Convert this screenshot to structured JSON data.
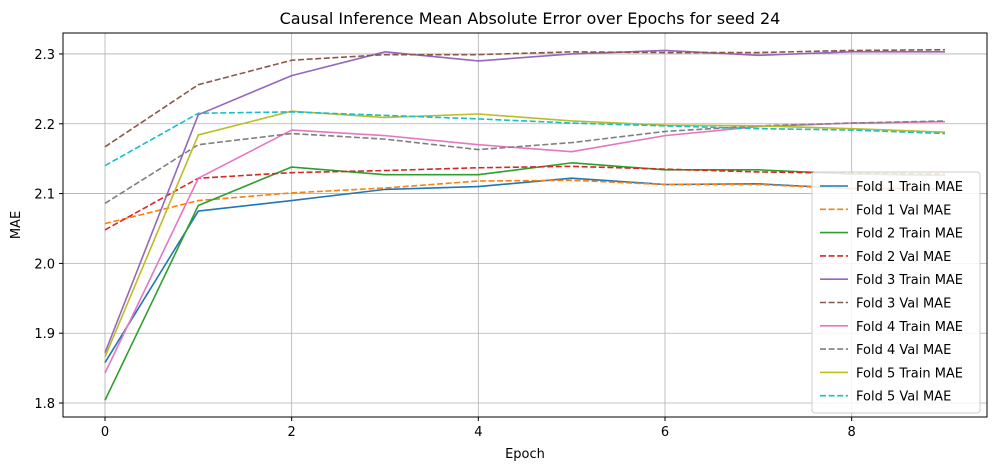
{
  "chart_data": {
    "type": "line",
    "title": "Causal Inference Mean Absolute Error over Epochs for seed 24",
    "xlabel": "Epoch",
    "ylabel": "MAE",
    "xlim": [
      -0.45,
      9.45
    ],
    "ylim": [
      1.78,
      2.33
    ],
    "xticks": [
      0,
      2,
      4,
      6,
      8
    ],
    "yticks": [
      1.8,
      1.9,
      2.0,
      2.1,
      2.2,
      2.3
    ],
    "grid": true,
    "legend_position": "lower right",
    "x": [
      0,
      1,
      2,
      3,
      4,
      5,
      6,
      7,
      8,
      9
    ],
    "series": [
      {
        "name": "Fold 1 Train MAE",
        "color": "#1f77b4",
        "style": "solid",
        "values": [
          1.858,
          2.075,
          2.09,
          2.106,
          2.11,
          2.122,
          2.113,
          2.114,
          2.107,
          2.107
        ]
      },
      {
        "name": "Fold 1 Val MAE",
        "color": "#ff7f0e",
        "style": "dashed",
        "values": [
          2.057,
          2.09,
          2.101,
          2.108,
          2.118,
          2.119,
          2.113,
          2.113,
          2.107,
          2.107
        ]
      },
      {
        "name": "Fold 2 Train MAE",
        "color": "#2ca02c",
        "style": "solid",
        "values": [
          1.804,
          2.083,
          2.138,
          2.127,
          2.127,
          2.144,
          2.134,
          2.134,
          2.128,
          2.126
        ]
      },
      {
        "name": "Fold 2 Val MAE",
        "color": "#d62728",
        "style": "dashed",
        "values": [
          2.048,
          2.122,
          2.13,
          2.133,
          2.137,
          2.139,
          2.135,
          2.131,
          2.129,
          2.128
        ]
      },
      {
        "name": "Fold 3 Train MAE",
        "color": "#9467bd",
        "style": "solid",
        "values": [
          1.872,
          2.213,
          2.269,
          2.303,
          2.29,
          2.3,
          2.305,
          2.298,
          2.303,
          2.303
        ]
      },
      {
        "name": "Fold 3 Val MAE",
        "color": "#8c564b",
        "style": "dashed",
        "values": [
          2.167,
          2.256,
          2.291,
          2.299,
          2.299,
          2.303,
          2.302,
          2.302,
          2.305,
          2.306
        ]
      },
      {
        "name": "Fold 4 Train MAE",
        "color": "#e377c2",
        "style": "solid",
        "values": [
          1.843,
          2.122,
          2.191,
          2.183,
          2.17,
          2.16,
          2.183,
          2.196,
          2.201,
          2.203
        ]
      },
      {
        "name": "Fold 4 Val MAE",
        "color": "#7f7f7f",
        "style": "dashed",
        "values": [
          2.086,
          2.17,
          2.186,
          2.178,
          2.163,
          2.173,
          2.189,
          2.197,
          2.201,
          2.204
        ]
      },
      {
        "name": "Fold 5 Train MAE",
        "color": "#bcbd22",
        "style": "solid",
        "values": [
          1.866,
          2.184,
          2.218,
          2.209,
          2.214,
          2.204,
          2.198,
          2.197,
          2.193,
          2.188
        ]
      },
      {
        "name": "Fold 5 Val MAE",
        "color": "#17becf",
        "style": "dashed",
        "values": [
          2.14,
          2.215,
          2.217,
          2.212,
          2.207,
          2.201,
          2.197,
          2.193,
          2.191,
          2.186
        ]
      }
    ]
  }
}
